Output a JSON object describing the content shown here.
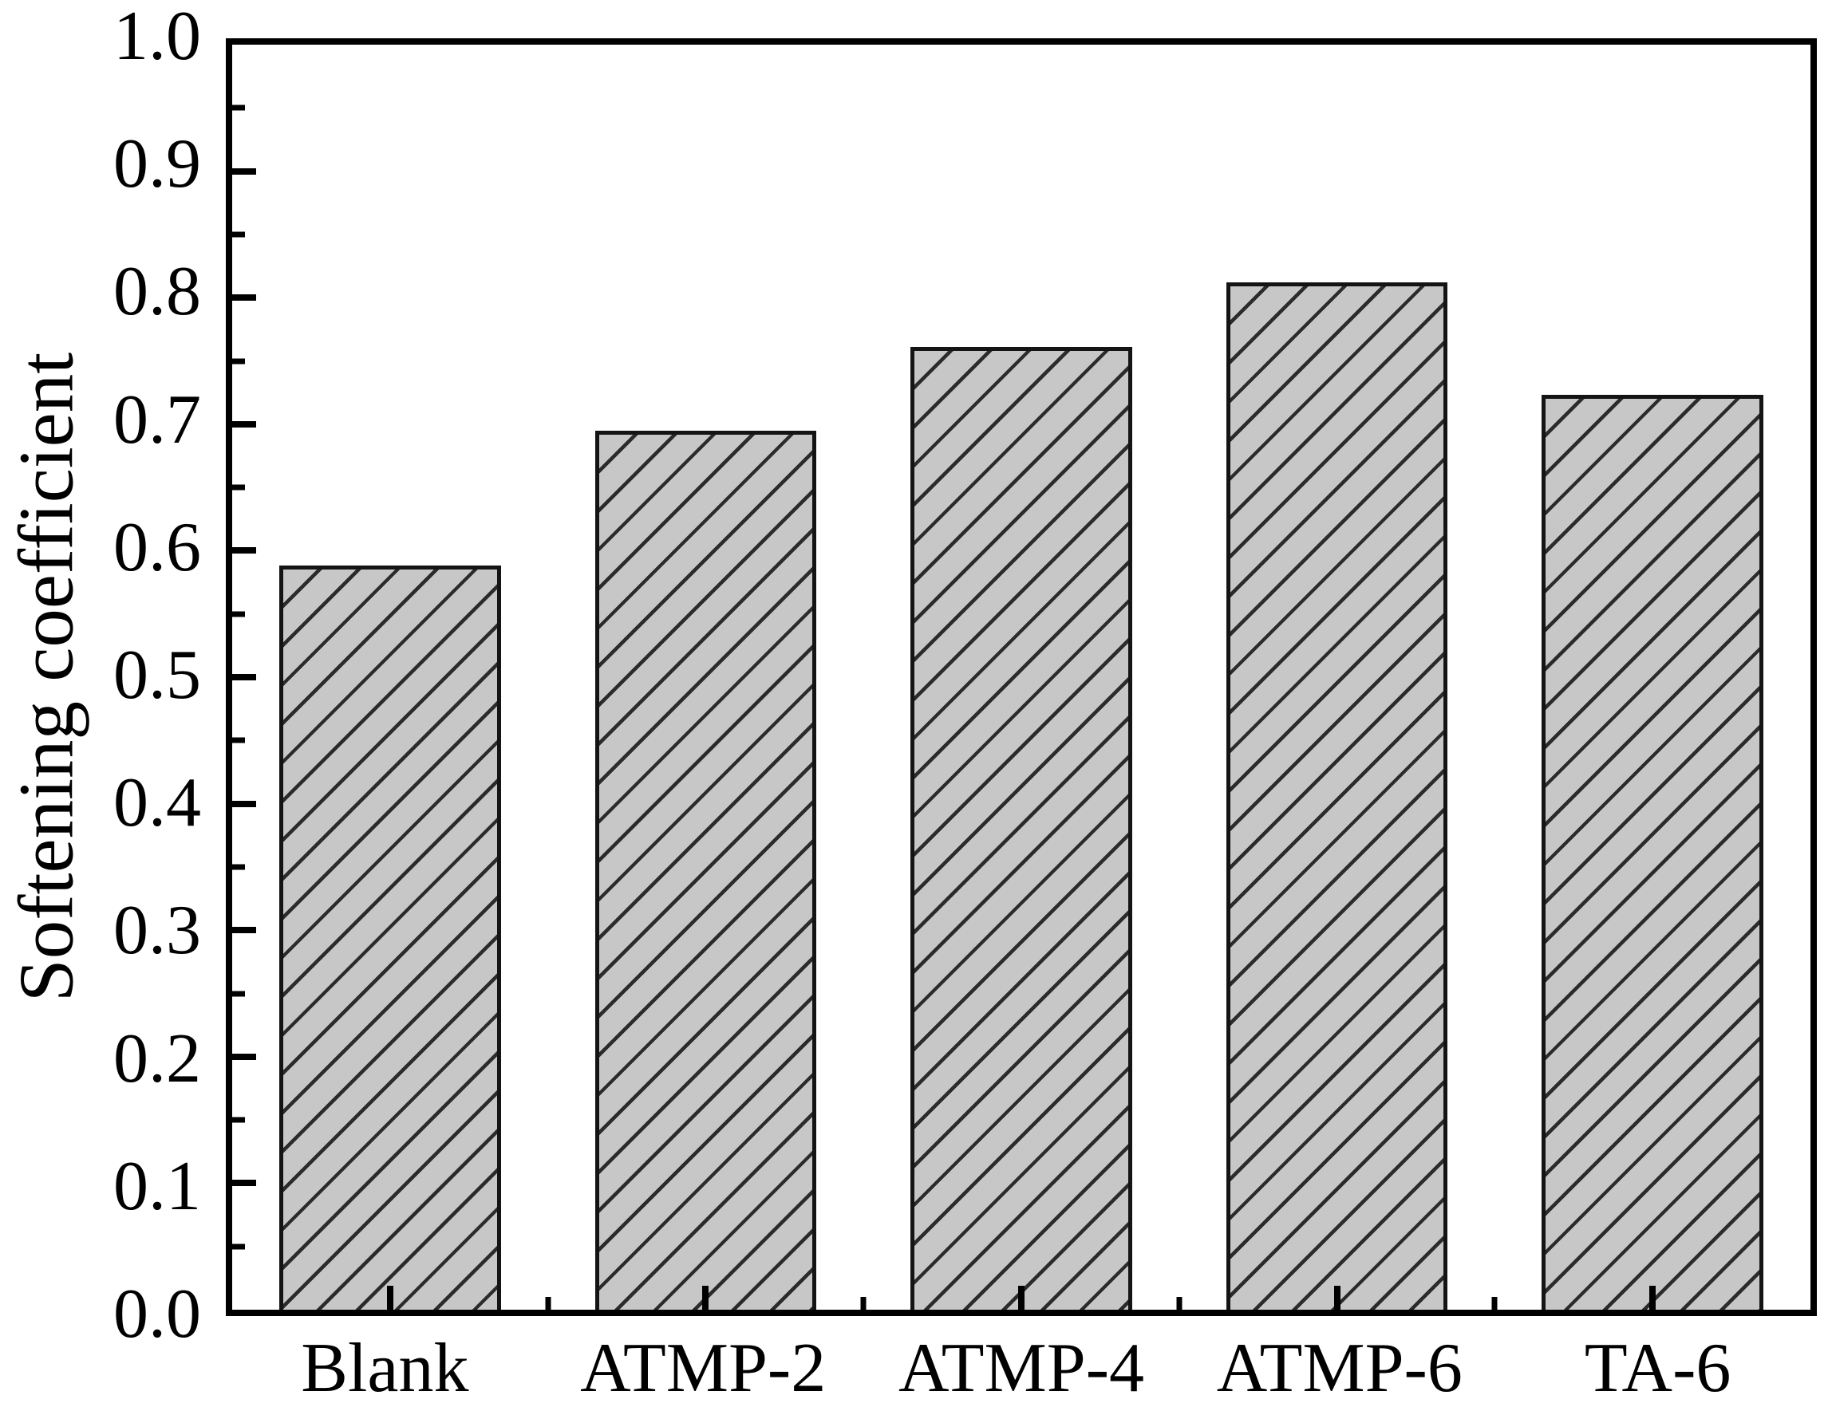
{
  "figure": {
    "background": "#ffffff",
    "axis_color": "#000000"
  },
  "chart_data": {
    "type": "bar",
    "title": "",
    "xlabel": "",
    "ylabel": "Softening coefficient",
    "categories": [
      "Blank",
      "ATMP-2",
      "ATMP-4",
      "ATMP-6",
      "TA-6"
    ],
    "values": [
      0.588,
      0.695,
      0.761,
      0.812,
      0.723
    ],
    "ylim": [
      0.0,
      1.0
    ],
    "ytick_step": 0.1,
    "ytick_labels": [
      "0.0",
      "0.1",
      "0.2",
      "0.3",
      "0.4",
      "0.5",
      "0.6",
      "0.7",
      "0.8",
      "0.9",
      "1.0"
    ],
    "minor_ytick_step": 0.05,
    "grid": false,
    "legend": null,
    "bar_style": {
      "fill": "#c7c7c7",
      "hatch": "diagonal-forward-slash",
      "hatch_color": "#2b2b2b",
      "border_color": "#141414"
    }
  }
}
